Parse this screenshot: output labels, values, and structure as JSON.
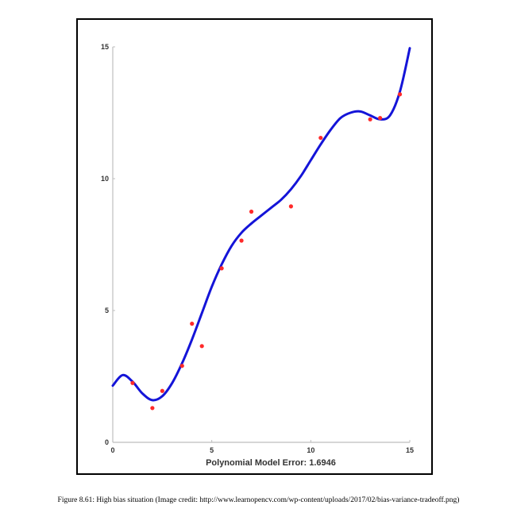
{
  "chart_data": {
    "type": "scatter",
    "title": "",
    "xlabel": "Polynomial Model Error: 1.6946",
    "ylabel": "",
    "xlim": [
      0,
      15
    ],
    "ylim": [
      0,
      15
    ],
    "xticks": [
      "0",
      "5",
      "10",
      "15"
    ],
    "yticks": [
      "0",
      "5",
      "10",
      "15"
    ],
    "grid": false,
    "series": [
      {
        "type": "scatter",
        "color": "#ff2a2a",
        "x": [
          1.0,
          2.0,
          2.5,
          3.5,
          4.0,
          4.5,
          5.5,
          6.5,
          7.0,
          9.0,
          10.5,
          13.0,
          13.5,
          14.5
        ],
        "y": [
          2.25,
          1.3,
          1.95,
          2.9,
          4.5,
          3.65,
          6.6,
          7.65,
          8.75,
          8.95,
          11.55,
          12.25,
          12.3,
          13.2
        ]
      },
      {
        "type": "line",
        "color": "#1414d8",
        "x": [
          0.0,
          0.5,
          1.0,
          1.5,
          2.0,
          2.5,
          3.0,
          3.5,
          4.0,
          4.5,
          5.0,
          5.5,
          6.0,
          6.5,
          7.0,
          7.5,
          8.0,
          8.5,
          9.0,
          9.5,
          10.0,
          10.5,
          11.0,
          11.5,
          12.0,
          12.5,
          13.0,
          13.5,
          14.0,
          14.5,
          15.0
        ],
        "y": [
          2.15,
          2.55,
          2.3,
          1.85,
          1.6,
          1.75,
          2.25,
          3.0,
          3.9,
          4.9,
          5.9,
          6.75,
          7.45,
          7.95,
          8.3,
          8.6,
          8.9,
          9.2,
          9.6,
          10.1,
          10.7,
          11.3,
          11.85,
          12.3,
          12.5,
          12.55,
          12.4,
          12.25,
          12.4,
          13.3,
          14.95
        ]
      }
    ]
  },
  "caption": "Figure 8.61: High bias situation (Image credit: http://www.learnopencv.com/wp-content/uploads/2017/02/bias-variance-tradeoff.png)"
}
